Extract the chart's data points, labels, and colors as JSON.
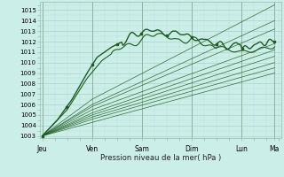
{
  "xlabel": "Pression niveau de la mer( hPa )",
  "bg_color": "#cceee8",
  "line_color": "#1f5c1f",
  "grid_major_color": "#aad4c8",
  "grid_minor_color": "#bcddd6",
  "tick_color": "#555555",
  "ylim": [
    1002.8,
    1015.8
  ],
  "yticks": [
    1003,
    1004,
    1005,
    1006,
    1007,
    1008,
    1009,
    1010,
    1011,
    1012,
    1013,
    1014,
    1015
  ],
  "day_labels": [
    "Jeu",
    "Ven",
    "Sam",
    "Dim",
    "Lun",
    "Ma"
  ],
  "day_positions": [
    0.0,
    1.0,
    2.0,
    3.0,
    4.0,
    4.667
  ],
  "xlim": [
    -0.05,
    4.8
  ],
  "total_days": 4.667
}
